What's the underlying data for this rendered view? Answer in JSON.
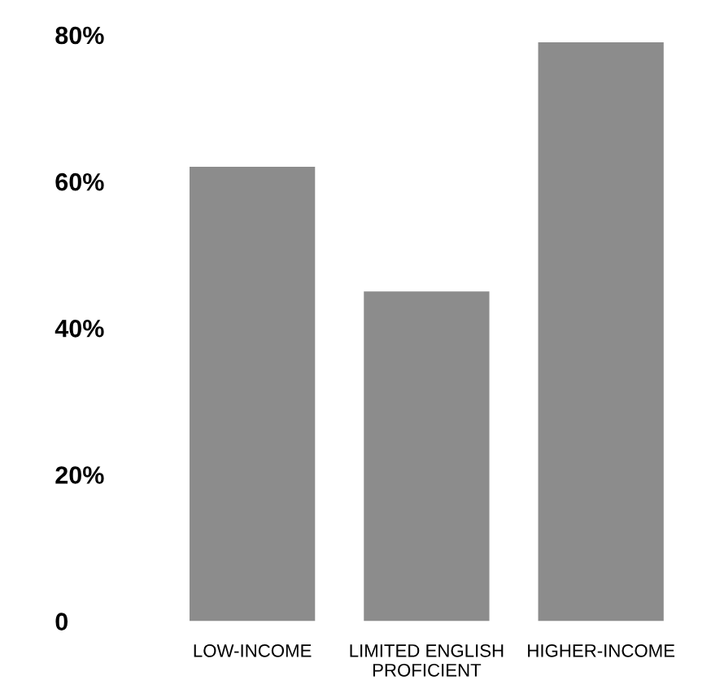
{
  "chart_data": {
    "type": "bar",
    "categories": [
      "LOW-INCOME",
      "LIMITED ENGLISH\nPROFICIENT",
      "HIGHER-INCOME"
    ],
    "values": [
      62,
      45,
      79
    ],
    "color": "#8c8c8c",
    "ylim": [
      0,
      80
    ],
    "yticks": [
      {
        "value": 0,
        "label": "0"
      },
      {
        "value": 20,
        "label": "20%"
      },
      {
        "value": 40,
        "label": "40%"
      },
      {
        "value": 60,
        "label": "60%"
      },
      {
        "value": 80,
        "label": "80%"
      }
    ],
    "grid": false
  }
}
